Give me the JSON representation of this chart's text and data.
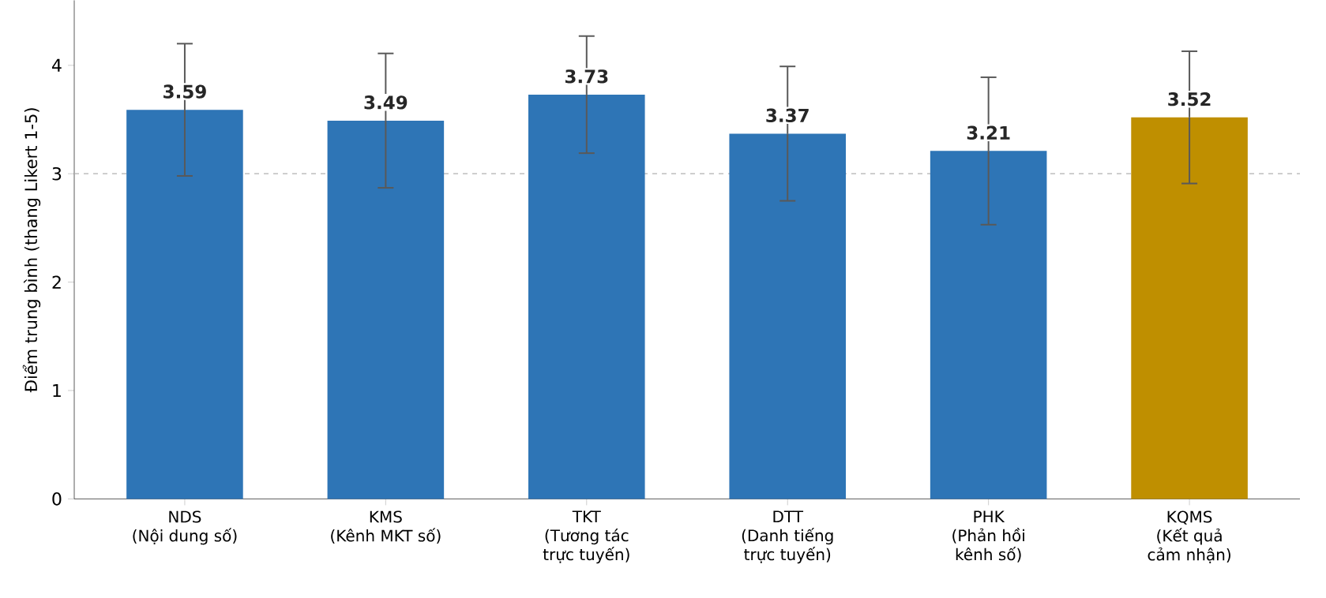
{
  "chart_data": {
    "type": "bar",
    "ylabel": "Điểm trung bình (thang Likert 1-5)",
    "categories": [
      "NDS\n(Nội dung số)",
      "KMS\n(Kênh MKT số)",
      "TKT\n(Tương tác\ntrực tuyến)",
      "DTT\n(Danh tiếng\ntrực tuyến)",
      "PHK\n(Phản hồi\nkênh số)",
      "KQMS\n(Kết quả\ncảm nhận)"
    ],
    "values": [
      3.59,
      3.49,
      3.73,
      3.37,
      3.21,
      3.52
    ],
    "errors": [
      0.61,
      0.62,
      0.54,
      0.62,
      0.68,
      0.61
    ],
    "colors": [
      "#2e75b6",
      "#2e75b6",
      "#2e75b6",
      "#2e75b6",
      "#2e75b6",
      "#bf8f00"
    ],
    "ylim": [
      0,
      4.6
    ],
    "yticks": [
      0,
      1,
      2,
      3,
      4
    ],
    "ref_lines": [
      {
        "axis": "y",
        "value": 3,
        "color": "#b0b0b0",
        "line_style": "dashed"
      }
    ],
    "data_labels": true,
    "grid": false
  }
}
